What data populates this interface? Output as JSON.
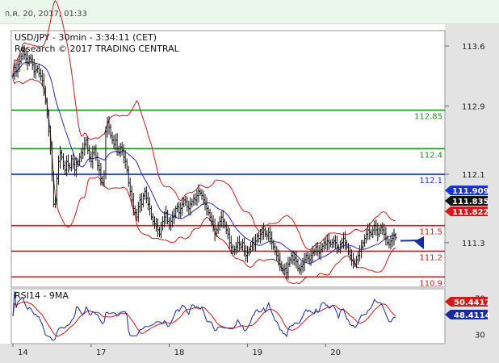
{
  "timestamp": "ก.ค. 20, 2017, 01:33",
  "header": {
    "line1": "USD/JPY - 30min - 3:34:11 (CET)",
    "line2": "Research © 2017 TRADING CENTRAL"
  },
  "chart_data": {
    "type": "line",
    "ylim": [
      110.78,
      113.78
    ],
    "y_ticks": [
      "113.6",
      "112.9",
      "112.1",
      "111.3"
    ],
    "y_tick_values": [
      113.6,
      112.9,
      112.1,
      111.3
    ],
    "x_ticks": [
      "14",
      "17",
      "18",
      "19",
      "20"
    ],
    "x_tick_index": [
      0,
      48,
      96,
      144,
      192
    ],
    "price": [
      113.25,
      113.35,
      113.3,
      113.38,
      113.42,
      113.48,
      113.55,
      113.5,
      113.45,
      113.4,
      113.46,
      113.44,
      113.38,
      113.3,
      113.32,
      113.34,
      113.28,
      113.25,
      113.2,
      113.1,
      112.95,
      112.8,
      112.6,
      112.4,
      112.1,
      111.75,
      111.8,
      112.05,
      112.25,
      112.35,
      112.3,
      112.2,
      112.15,
      112.25,
      112.2,
      112.18,
      112.28,
      112.22,
      112.15,
      112.22,
      112.25,
      112.3,
      112.35,
      112.4,
      112.45,
      112.5,
      112.38,
      112.3,
      112.25,
      112.35,
      112.4,
      112.3,
      112.2,
      112.15,
      112.05,
      112.0,
      112.1,
      112.6,
      112.7,
      112.65,
      112.55,
      112.5,
      112.45,
      112.5,
      112.4,
      112.35,
      112.42,
      112.38,
      112.3,
      112.25,
      112.15,
      112.0,
      111.9,
      111.8,
      111.7,
      111.65,
      111.6,
      111.72,
      111.8,
      111.75,
      111.85,
      111.9,
      111.82,
      111.75,
      111.7,
      111.6,
      111.55,
      111.52,
      111.5,
      111.45,
      111.4,
      111.5,
      111.55,
      111.6,
      111.65,
      111.55,
      111.5,
      111.55,
      111.6,
      111.62,
      111.7,
      111.72,
      111.65,
      111.7,
      111.75,
      111.8,
      111.78,
      111.72,
      111.7,
      111.75,
      111.78,
      111.82,
      111.8,
      111.85,
      111.9,
      111.88,
      111.85,
      111.8,
      111.75,
      111.7,
      111.65,
      111.6,
      111.55,
      111.5,
      111.4,
      111.45,
      111.5,
      111.55,
      111.6,
      111.55,
      111.5,
      111.45,
      111.4,
      111.3,
      111.25,
      111.2,
      111.22,
      111.25,
      111.3,
      111.28,
      111.25,
      111.3,
      111.2,
      111.15,
      111.18,
      111.22,
      111.26,
      111.3,
      111.28,
      111.32,
      111.38,
      111.35,
      111.4,
      111.42,
      111.45,
      111.4,
      111.38,
      111.42,
      111.35,
      111.3,
      111.25,
      111.2,
      111.15,
      111.1,
      111.05,
      111.0,
      110.98,
      111.0,
      110.95,
      111.05,
      111.1,
      111.15,
      111.1,
      111.12,
      111.08,
      111.0,
      110.98,
      111.02,
      111.05,
      111.1,
      111.15,
      111.12,
      111.1,
      111.15,
      111.18,
      111.2,
      111.25,
      111.2,
      111.18,
      111.22,
      111.26,
      111.3,
      111.28,
      111.32,
      111.3,
      111.28,
      111.3,
      111.32,
      111.3,
      111.25,
      111.22,
      111.28,
      111.3,
      111.35,
      111.3,
      111.25,
      111.2,
      111.15,
      111.1,
      111.08,
      111.05,
      111.1,
      111.15,
      111.2,
      111.25,
      111.3,
      111.35,
      111.4,
      111.45,
      111.42,
      111.4,
      111.45,
      111.5,
      111.45,
      111.4,
      111.45,
      111.48,
      111.45,
      111.4,
      111.35,
      111.3,
      111.28,
      111.32,
      111.35,
      111.38,
      111.36
    ],
    "bands_window": 20,
    "bands_mult": 2,
    "levels": [
      {
        "value": 112.85,
        "label": "112.85",
        "color": "#1e8f1e"
      },
      {
        "value": 112.4,
        "label": "112.4",
        "color": "#1e8f1e"
      },
      {
        "value": 112.1,
        "label": "112.1",
        "color": "#1a33c8"
      },
      {
        "value": 111.5,
        "label": "111.5",
        "color": "#d11a1a"
      },
      {
        "value": 111.2,
        "label": "111.2",
        "color": "#d11a1a"
      },
      {
        "value": 110.9,
        "label": "110.9",
        "color": "#d11a1a"
      }
    ],
    "badges": [
      {
        "label": "111.909",
        "value": 111.909,
        "color": "#1a33c8"
      },
      {
        "label": "111.835",
        "value": 111.835,
        "color": "#111111"
      },
      {
        "label": "111.822",
        "value": 111.822,
        "color": "#d11a1a"
      }
    ],
    "colors": {
      "price": "#111111",
      "ma": "#2a2ac8",
      "bands": "#d11a1a",
      "arrow": "#1a2aa0"
    }
  },
  "rsi": {
    "label": "RSI14 - 9MA",
    "ylim": [
      20,
      80
    ],
    "y_ticks": [
      "70",
      "30"
    ],
    "y_tick_values": [
      70,
      30
    ],
    "current_rsi": "48.4114",
    "current_ma": "50.4417",
    "rsi_value": 48.4114,
    "ma_value": 50.4417,
    "rsi_color": "#1a2aa0",
    "ma_color": "#d11a1a"
  }
}
